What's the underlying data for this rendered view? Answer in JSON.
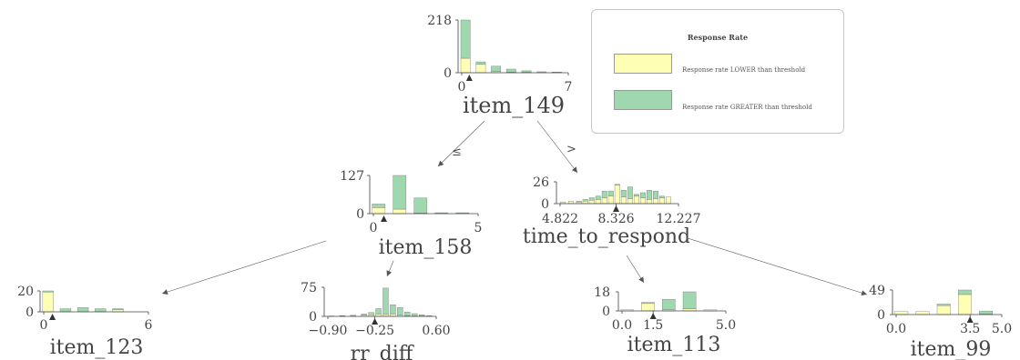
{
  "colors": {
    "lower": "#fefeb5",
    "greater": "#9fd7ae",
    "bar_edge": "#7a7a7a",
    "text": "#444444"
  },
  "legend": {
    "title": "Response Rate",
    "items": [
      {
        "label": "Response rate LOWER than threshold",
        "color": "#fefeb5"
      },
      {
        "label": "Response rate GREATER than threshold",
        "color": "#9fd7ae"
      }
    ]
  },
  "edges": {
    "left_label": "≤",
    "right_label": ">"
  },
  "chart_data": [
    {
      "type": "bar",
      "node": "root",
      "xlabel": "item_149",
      "ymax_label": "218",
      "ymin_label": "0",
      "xticks": [
        "0",
        "7"
      ],
      "xlim": [
        0,
        7
      ],
      "ylim": [
        0,
        218
      ],
      "split": 0.5,
      "bins": [
        0,
        1,
        2,
        3,
        4,
        5,
        6
      ],
      "lower": [
        60,
        35,
        5,
        3,
        2,
        1,
        1
      ],
      "greater": [
        158,
        10,
        22,
        12,
        6,
        3,
        2
      ]
    },
    {
      "type": "bar",
      "node": "left",
      "xlabel": "item_158",
      "ymax_label": "127",
      "ymin_label": "0",
      "xticks": [
        "0",
        "5"
      ],
      "xlim": [
        0,
        5
      ],
      "ylim": [
        0,
        127
      ],
      "split": 0.5,
      "bins": [
        0,
        1,
        2,
        3,
        4
      ],
      "lower": [
        20,
        15,
        2,
        1,
        1
      ],
      "greater": [
        12,
        112,
        50,
        2,
        2
      ]
    },
    {
      "type": "bar",
      "node": "right",
      "xlabel": "time_to_respond",
      "ymax_label": "26",
      "ymin_label": "0",
      "xticks": [
        "4.822",
        "8.326",
        "12.227"
      ],
      "xtick_values": [
        4.822,
        8.326,
        12.227
      ],
      "xlim": [
        4.822,
        12.227
      ],
      "ylim": [
        0,
        26
      ],
      "split": 8.326,
      "bins": [
        5.0,
        5.5,
        6.0,
        6.4,
        6.8,
        7.2,
        7.6,
        8.0,
        8.4,
        8.8,
        9.2,
        9.6,
        10.0,
        10.4,
        10.8,
        11.2,
        11.6
      ],
      "lower": [
        2,
        3,
        2,
        3,
        4,
        5,
        7,
        9,
        22,
        8,
        6,
        9,
        7,
        5,
        6,
        7,
        8
      ],
      "greater": [
        0,
        0,
        1,
        2,
        3,
        4,
        8,
        6,
        1,
        8,
        14,
        2,
        6,
        11,
        9,
        2,
        0
      ]
    },
    {
      "type": "bar",
      "node": "left-left",
      "xlabel": "item_123",
      "ymax_label": "20",
      "ymin_label": "0",
      "xticks": [
        "0",
        "6"
      ],
      "xlim": [
        0,
        6
      ],
      "ylim": [
        0,
        20
      ],
      "split": 0.5,
      "bins": [
        0,
        1,
        2,
        3,
        4,
        5
      ],
      "lower": [
        19,
        0,
        0,
        0,
        2,
        0
      ],
      "greater": [
        1,
        3,
        4,
        3,
        1,
        0
      ]
    },
    {
      "type": "bar",
      "node": "left-right",
      "xlabel": "rr_diff",
      "ymax_label": "75",
      "ymin_label": "0",
      "xticks": [
        "−0.90",
        "−0.25",
        "0.60"
      ],
      "xtick_values": [
        -0.9,
        -0.25,
        0.6
      ],
      "xlim": [
        -0.9,
        0.6
      ],
      "ylim": [
        0,
        75
      ],
      "split": -0.25,
      "bins": [
        -0.85,
        -0.7,
        -0.55,
        -0.4,
        -0.3,
        -0.2,
        -0.1,
        0.0,
        0.1,
        0.2,
        0.3,
        0.4,
        0.5
      ],
      "lower": [
        0,
        1,
        1,
        3,
        4,
        6,
        5,
        6,
        3,
        2,
        1,
        1,
        0
      ],
      "greater": [
        1,
        1,
        2,
        3,
        6,
        14,
        68,
        24,
        20,
        9,
        6,
        3,
        2
      ]
    },
    {
      "type": "bar",
      "node": "right-left",
      "xlabel": "item_113",
      "ymax_label": "18",
      "ymin_label": "0",
      "xticks": [
        "0.0",
        "1.5",
        "5.0"
      ],
      "xtick_values": [
        0,
        1.5,
        5.0
      ],
      "xlim": [
        0,
        5
      ],
      "ylim": [
        0,
        18
      ],
      "split": 1.5,
      "bins": [
        0,
        1,
        2,
        3,
        4
      ],
      "lower": [
        1,
        7,
        1,
        2,
        1
      ],
      "greater": [
        0,
        1,
        10,
        16,
        0
      ]
    },
    {
      "type": "bar",
      "node": "right-right",
      "xlabel": "item_99",
      "ymax_label": "49",
      "ymin_label": "0",
      "xticks": [
        "0.0",
        "3.5",
        "5.0"
      ],
      "xtick_values": [
        0,
        3.5,
        5.0
      ],
      "xlim": [
        0,
        5
      ],
      "ylim": [
        0,
        49
      ],
      "split": 3.5,
      "bins": [
        0,
        1,
        2,
        3,
        4
      ],
      "lower": [
        6,
        6,
        18,
        40,
        1
      ],
      "greater": [
        0,
        0,
        3,
        9,
        6
      ]
    }
  ]
}
